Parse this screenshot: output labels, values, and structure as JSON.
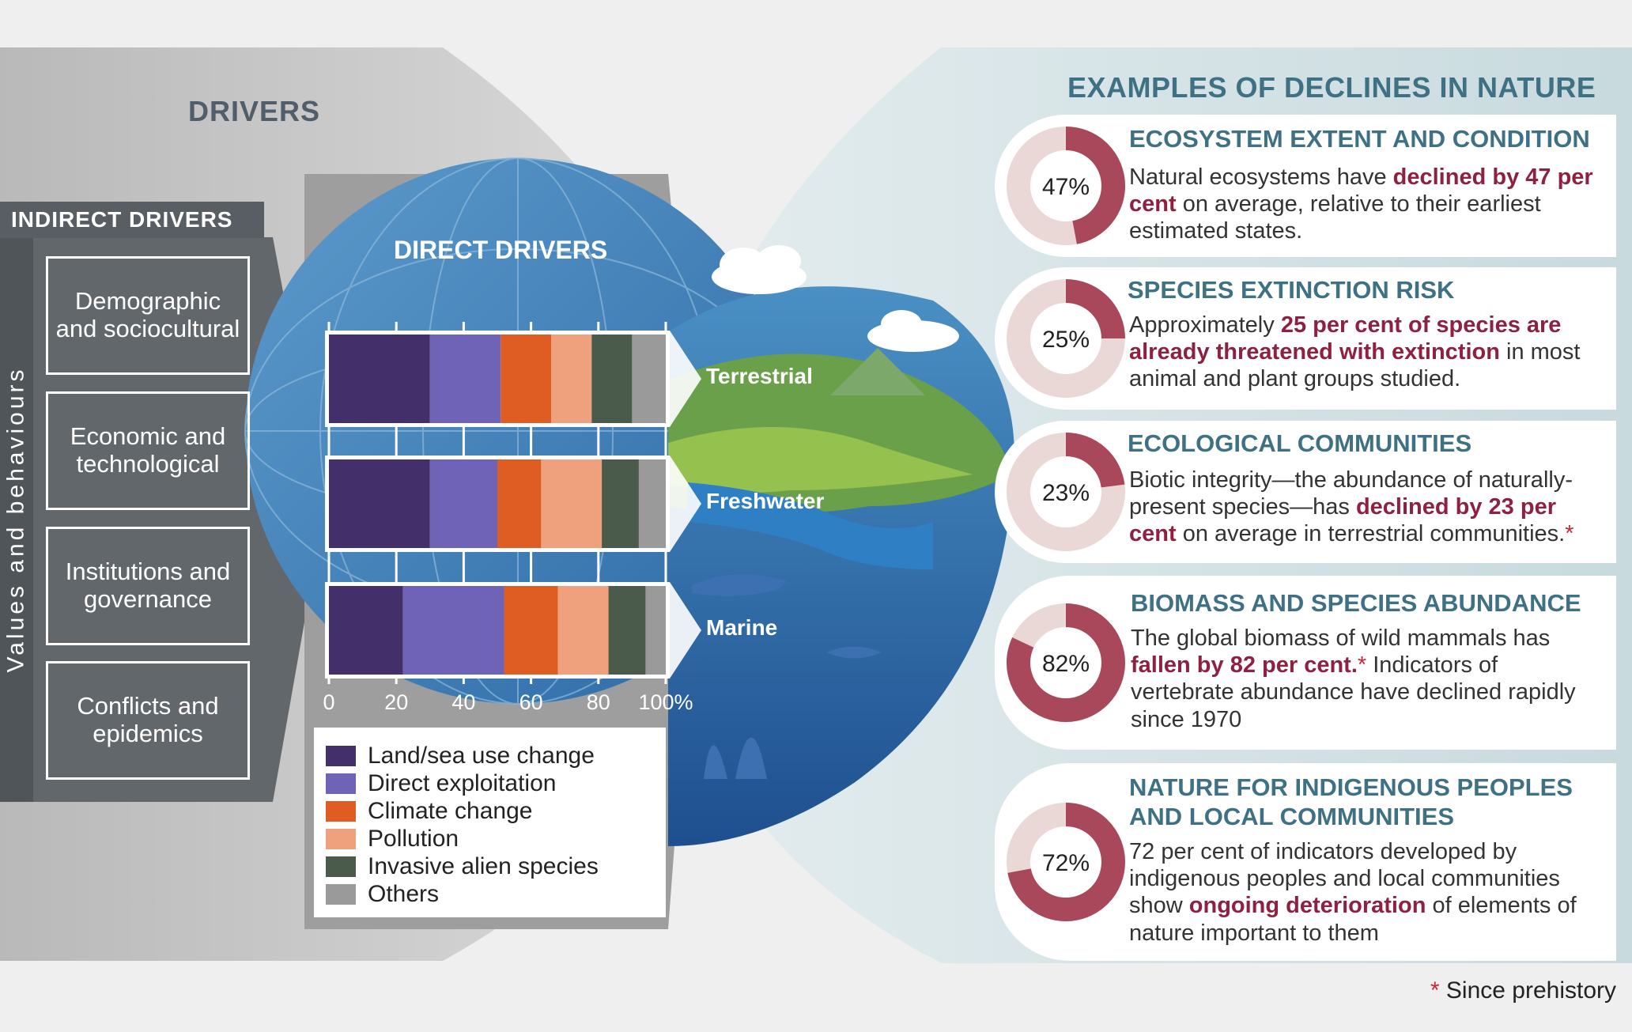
{
  "drivers_title": "DRIVERS",
  "indirect": {
    "header": "INDIRECT DRIVERS",
    "side_label": "Values and behaviours",
    "items": [
      "Demographic and sociocultural",
      "Economic and technological",
      "Institutions and governance",
      "Conflicts and epidemics"
    ]
  },
  "direct": {
    "title": "DIRECT DRIVERS",
    "regions": [
      "Terrestrial",
      "Freshwater",
      "Marine"
    ]
  },
  "colors": {
    "land_sea": "#43306a",
    "exploitation": "#6f63b8",
    "climate": "#df5d23",
    "pollution": "#efa07c",
    "invasive": "#4a5b4c",
    "others": "#9a9a9a",
    "accent_red": "#a8485a",
    "donut_light": "#ead8d6",
    "title_blue": "#3f7185"
  },
  "chart_data": {
    "type": "bar",
    "orientation": "horizontal",
    "stacked": true,
    "categories": [
      "Terrestrial",
      "Freshwater",
      "Marine"
    ],
    "x_ticks": [
      "0",
      "20",
      "40",
      "60",
      "80",
      "100%"
    ],
    "xlim": [
      0,
      100
    ],
    "series": [
      {
        "name": "Land/sea use change",
        "values": [
          30,
          30,
          22
        ]
      },
      {
        "name": "Direct exploitation",
        "values": [
          21,
          20,
          30
        ]
      },
      {
        "name": "Climate change",
        "values": [
          15,
          13,
          16
        ]
      },
      {
        "name": "Pollution",
        "values": [
          12,
          18,
          15
        ]
      },
      {
        "name": "Invasive alien species",
        "values": [
          12,
          11,
          11
        ]
      },
      {
        "name": "Others",
        "values": [
          10,
          8,
          6
        ]
      }
    ]
  },
  "examples": {
    "title": "EXAMPLES OF DECLINES IN NATURE",
    "cards": [
      {
        "title": "ECOSYSTEM EXTENT AND CONDITION",
        "percent": 47,
        "percent_label": "47%",
        "text": [
          {
            "t": "Natural ecosystems have "
          },
          {
            "t": "declined by 47 per cent",
            "hl": true
          },
          {
            "t": " on average, relative to their earliest estimated states."
          }
        ]
      },
      {
        "title": "SPECIES EXTINCTION RISK",
        "percent": 25,
        "percent_label": "25%",
        "text": [
          {
            "t": "Approximately "
          },
          {
            "t": "25 per cent of species are already threatened with extinction",
            "hl": true
          },
          {
            "t": " in most animal and plant groups studied."
          }
        ]
      },
      {
        "title": "ECOLOGICAL COMMUNITIES",
        "percent": 23,
        "percent_label": "23%",
        "text": [
          {
            "t": "Biotic integrity—the abundance of naturally-present species—has "
          },
          {
            "t": "declined by 23 per cent",
            "hl": true
          },
          {
            "t": " on average in terrestrial communities."
          },
          {
            "t": "*",
            "star": true
          }
        ]
      },
      {
        "title": "BIOMASS AND SPECIES ABUNDANCE",
        "percent": 82,
        "percent_label": "82%",
        "text": [
          {
            "t": "The global biomass of wild mammals has "
          },
          {
            "t": "fallen by 82 per cent.",
            "hl": true
          },
          {
            "t": "*",
            "star": true
          },
          {
            "t": " Indicators of vertebrate abundance have declined rapidly since 1970"
          }
        ]
      },
      {
        "title": "NATURE FOR INDIGENOUS PEOPLES AND LOCAL COMMUNITIES",
        "percent": 72,
        "percent_label": "72%",
        "text": [
          {
            "t": "72 per cent of indicators developed by indigenous peoples and local communities show "
          },
          {
            "t": "ongoing deterioration",
            "hl": true
          },
          {
            "t": " of elements of nature important to them"
          }
        ]
      }
    ]
  },
  "footnote": {
    "star": "*",
    "text": " Since prehistory"
  }
}
